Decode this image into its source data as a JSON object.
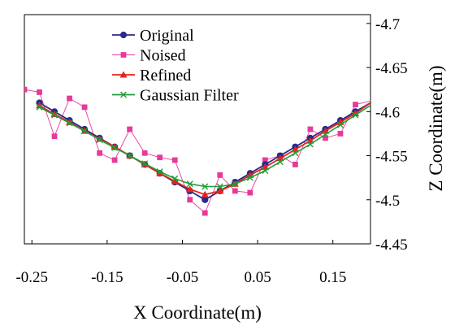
{
  "chart_data": {
    "type": "line",
    "title": "",
    "xlabel": "X Coordinate(m)",
    "ylabel": "Z Coordinate(m)",
    "xlim": [
      -0.26,
      0.2
    ],
    "ylim": [
      -4.71,
      -4.45
    ],
    "y_reversed": true,
    "y_axis_side": "right",
    "grid": false,
    "legend_position": "top-left",
    "x_ticks": [
      -0.25,
      -0.15,
      -0.05,
      0.05,
      0.15
    ],
    "x_tick_labels": [
      "-0.25",
      "-0.15",
      "-0.05",
      "0.05",
      "0.15"
    ],
    "y_ticks": [
      -4.7,
      -4.65,
      -4.6,
      -4.55,
      -4.5,
      -4.45
    ],
    "y_tick_labels": [
      "-4.7",
      "-4.65",
      "-4.6",
      "-4.55",
      "-4.5",
      "-4.45"
    ],
    "series": [
      {
        "name": "Original",
        "color": "#2a2a8c",
        "marker": "circle",
        "x": [
          -0.24,
          -0.22,
          -0.2,
          -0.18,
          -0.16,
          -0.14,
          -0.12,
          -0.1,
          -0.08,
          -0.06,
          -0.04,
          -0.02,
          0.0,
          0.02,
          0.04,
          0.06,
          0.08,
          0.1,
          0.12,
          0.14,
          0.16,
          0.18,
          0.2
        ],
        "y": [
          -4.61,
          -4.6,
          -4.59,
          -4.58,
          -4.57,
          -4.56,
          -4.55,
          -4.54,
          -4.53,
          -4.52,
          -4.51,
          -4.5,
          -4.51,
          -4.52,
          -4.53,
          -4.54,
          -4.55,
          -4.56,
          -4.57,
          -4.58,
          -4.59,
          -4.6,
          -4.61
        ]
      },
      {
        "name": "Noised",
        "color": "#e8399a",
        "marker": "square",
        "x": [
          -0.26,
          -0.24,
          -0.22,
          -0.2,
          -0.18,
          -0.16,
          -0.14,
          -0.12,
          -0.1,
          -0.08,
          -0.06,
          -0.04,
          -0.02,
          0.0,
          0.02,
          0.04,
          0.06,
          0.08,
          0.1,
          0.12,
          0.14,
          0.16,
          0.18,
          0.2,
          0.205
        ],
        "y": [
          -4.625,
          -4.622,
          -4.572,
          -4.615,
          -4.605,
          -4.553,
          -4.545,
          -4.58,
          -4.553,
          -4.548,
          -4.545,
          -4.5,
          -4.485,
          -4.528,
          -4.51,
          -4.508,
          -4.545,
          -4.55,
          -4.54,
          -4.58,
          -4.57,
          -4.575,
          -4.608,
          -4.612,
          -4.635
        ]
      },
      {
        "name": "Refined",
        "color": "#e8231c",
        "marker": "triangle",
        "x": [
          -0.24,
          -0.22,
          -0.2,
          -0.18,
          -0.16,
          -0.14,
          -0.12,
          -0.1,
          -0.08,
          -0.06,
          -0.04,
          -0.02,
          0.0,
          0.02,
          0.04,
          0.06,
          0.08,
          0.1,
          0.12,
          0.14,
          0.16,
          0.18,
          0.2
        ],
        "y": [
          -4.607,
          -4.597,
          -4.588,
          -4.578,
          -4.569,
          -4.56,
          -4.55,
          -4.54,
          -4.53,
          -4.521,
          -4.512,
          -4.506,
          -4.51,
          -4.518,
          -4.528,
          -4.537,
          -4.547,
          -4.557,
          -4.567,
          -4.578,
          -4.588,
          -4.598,
          -4.61
        ]
      },
      {
        "name": "Gaussian Filter",
        "color": "#1f9e3a",
        "marker": "x",
        "x": [
          -0.24,
          -0.22,
          -0.2,
          -0.18,
          -0.16,
          -0.14,
          -0.12,
          -0.1,
          -0.08,
          -0.06,
          -0.04,
          -0.02,
          0.0,
          0.02,
          0.04,
          0.06,
          0.08,
          0.1,
          0.12,
          0.14,
          0.16,
          0.18,
          0.2
        ],
        "y": [
          -4.605,
          -4.596,
          -4.587,
          -4.578,
          -4.568,
          -4.559,
          -4.55,
          -4.541,
          -4.532,
          -4.524,
          -4.518,
          -4.515,
          -4.515,
          -4.518,
          -4.525,
          -4.533,
          -4.543,
          -4.553,
          -4.563,
          -4.574,
          -4.585,
          -4.596,
          -4.607
        ]
      }
    ]
  }
}
